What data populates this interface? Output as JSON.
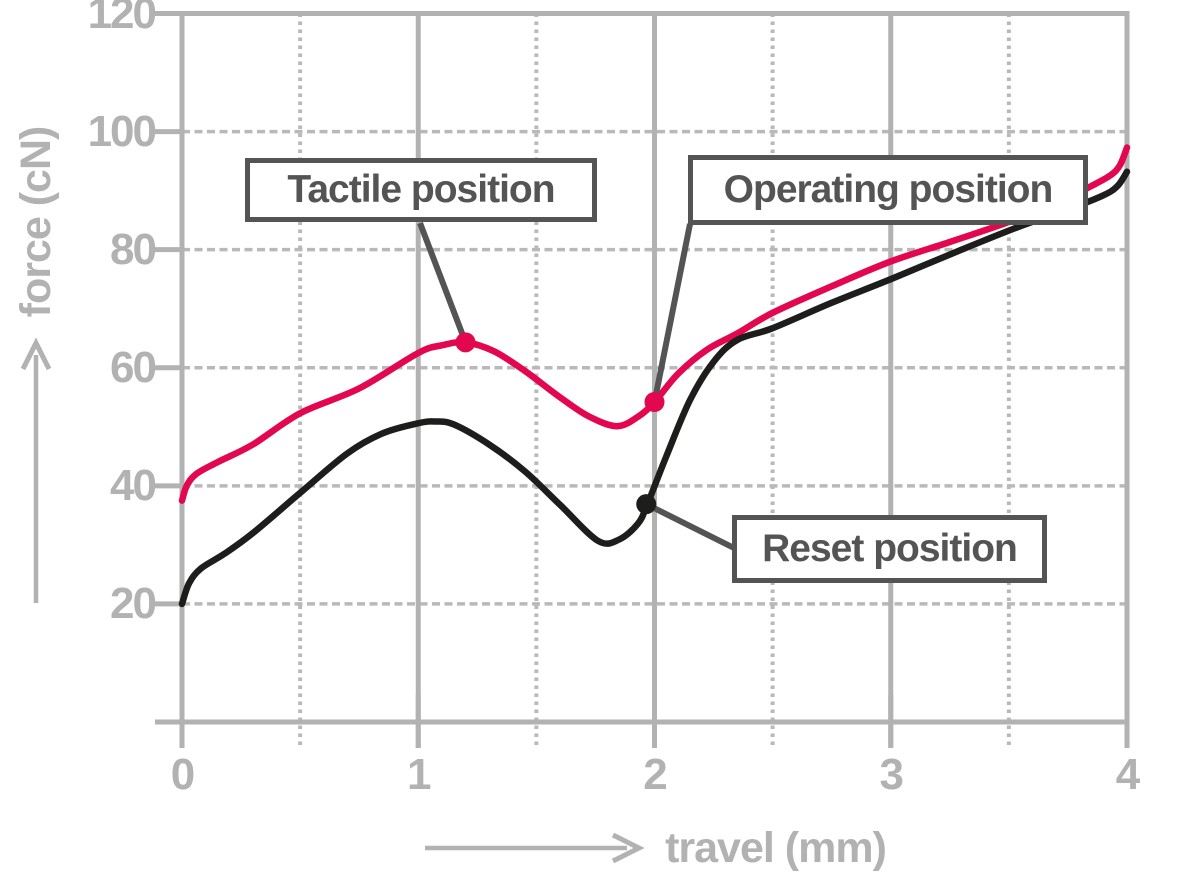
{
  "figure": {
    "background": "#ffffff"
  },
  "axes": {
    "x": {
      "label": "travel (mm)",
      "ticks": [
        "0",
        "1",
        "2",
        "3",
        "4"
      ]
    },
    "y": {
      "label": "force (cN)",
      "ticks": [
        "20",
        "40",
        "60",
        "80",
        "100",
        "120"
      ]
    }
  },
  "annotations": {
    "tactile": {
      "label": "Tactile position"
    },
    "operating": {
      "label": "Operating position"
    },
    "reset": {
      "label": "Reset position"
    }
  },
  "colors": {
    "axis_gray": "#b2b2b2",
    "grid_gray": "#b9b9b9",
    "dark_gray": "#545454",
    "press_red": "#e2074f",
    "release_black": "#1d1d1b"
  },
  "chart_data": {
    "type": "line",
    "title": "",
    "xlabel": "travel (mm)",
    "ylabel": "force (cN)",
    "xlim": [
      0,
      4
    ],
    "ylim": [
      0,
      120
    ],
    "x_ticks": [
      0,
      1,
      2,
      3,
      4
    ],
    "y_ticks": [
      20,
      40,
      60,
      80,
      100,
      120
    ],
    "x_minor_gridlines": [
      0.5,
      1.5,
      2.5,
      3.5
    ],
    "grid": "horizontal dashed at y ticks; vertical solid at integer x; vertical dotted at half x",
    "legend": "none",
    "series": [
      {
        "name": "press",
        "color": "#e2074f",
        "points": [
          [
            0,
            37.5
          ],
          [
            0.02,
            40
          ],
          [
            0.06,
            42
          ],
          [
            0.15,
            44
          ],
          [
            0.3,
            47
          ],
          [
            0.5,
            52.3
          ],
          [
            0.75,
            56.5
          ],
          [
            1.0,
            62.5
          ],
          [
            1.1,
            63.8
          ],
          [
            1.2,
            64.3
          ],
          [
            1.32,
            62.8
          ],
          [
            1.45,
            59.5
          ],
          [
            1.6,
            55
          ],
          [
            1.72,
            51.8
          ],
          [
            1.84,
            50.1
          ],
          [
            1.93,
            51.7
          ],
          [
            2.0,
            54.2
          ],
          [
            2.1,
            59
          ],
          [
            2.22,
            63
          ],
          [
            2.35,
            65.8
          ],
          [
            2.5,
            69.3
          ],
          [
            2.75,
            73.8
          ],
          [
            3.0,
            78
          ],
          [
            3.25,
            81.3
          ],
          [
            3.5,
            84.7
          ],
          [
            3.7,
            87.8
          ],
          [
            3.85,
            90.8
          ],
          [
            3.93,
            92.6
          ],
          [
            3.97,
            94.3
          ],
          [
            4.0,
            97.3
          ]
        ]
      },
      {
        "name": "release",
        "color": "#1d1d1b",
        "points": [
          [
            0,
            20
          ],
          [
            0.03,
            23.5
          ],
          [
            0.08,
            26
          ],
          [
            0.18,
            28.5
          ],
          [
            0.3,
            32
          ],
          [
            0.5,
            38.8
          ],
          [
            0.7,
            45.5
          ],
          [
            0.85,
            48.9
          ],
          [
            1.0,
            50.6
          ],
          [
            1.07,
            50.9
          ],
          [
            1.15,
            50.4
          ],
          [
            1.3,
            47
          ],
          [
            1.45,
            42.5
          ],
          [
            1.6,
            36.8
          ],
          [
            1.76,
            30.7
          ],
          [
            1.85,
            30.9
          ],
          [
            1.93,
            33.6
          ],
          [
            1.97,
            36.9
          ],
          [
            2.05,
            45
          ],
          [
            2.15,
            54.5
          ],
          [
            2.25,
            61
          ],
          [
            2.35,
            64.7
          ],
          [
            2.5,
            66.7
          ],
          [
            2.75,
            71
          ],
          [
            3.0,
            75
          ],
          [
            3.3,
            80
          ],
          [
            3.55,
            84
          ],
          [
            3.75,
            86.8
          ],
          [
            3.9,
            89.2
          ],
          [
            3.96,
            90.8
          ],
          [
            4.0,
            93.2
          ]
        ]
      }
    ],
    "markers": [
      {
        "name": "tactile",
        "label": "Tactile position",
        "x": 1.2,
        "y": 64.3,
        "color": "#e2074f"
      },
      {
        "name": "operating",
        "label": "Operating position",
        "x": 2.0,
        "y": 54.2,
        "color": "#e2074f"
      },
      {
        "name": "reset",
        "label": "Reset position",
        "x": 1.965,
        "y": 36.9,
        "color": "#1d1d1b"
      }
    ]
  }
}
